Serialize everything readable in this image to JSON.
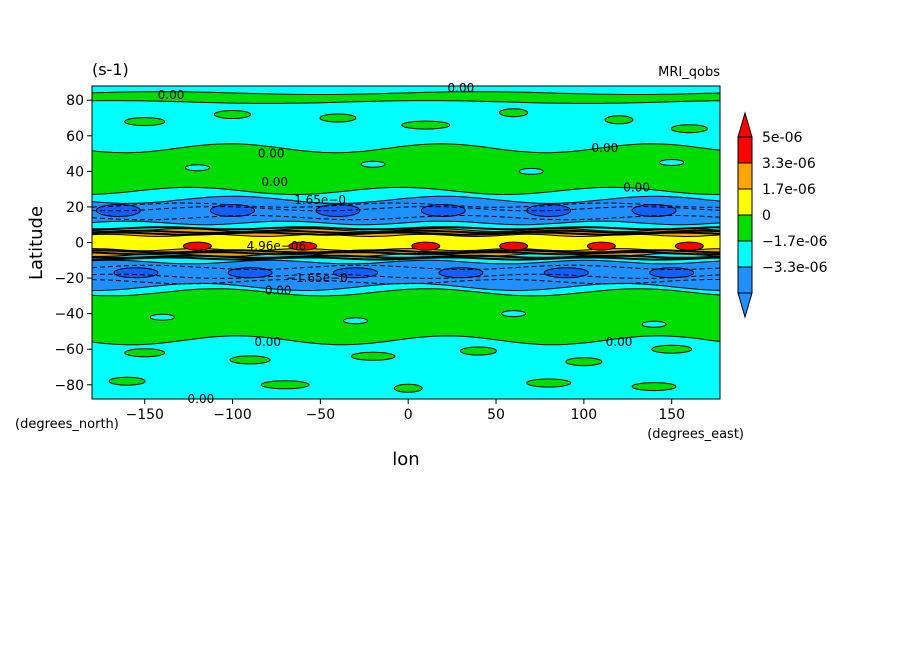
{
  "chart_data": {
    "type": "heatmap",
    "units_label": "(s-1)",
    "dataset_label": "MRI_qobs",
    "xlabel": "lon",
    "ylabel": "Latitude",
    "x_units": "(degrees_east)",
    "y_units": "(degrees_north)",
    "xlim": [
      -180,
      177.5
    ],
    "ylim": [
      -88,
      88
    ],
    "x_ticks": [
      -150,
      -100,
      -50,
      0,
      50,
      100,
      150
    ],
    "y_ticks": [
      -80,
      -60,
      -40,
      -20,
      0,
      20,
      40,
      60,
      80
    ],
    "color_levels": [
      -5e-06,
      -3.3e-06,
      -1.7e-06,
      0,
      1.7e-06,
      3.3e-06,
      5e-06
    ],
    "colorbar_labels": [
      "5e-06",
      "3.3e-06",
      "1.7e-06",
      "0",
      "−1.7e-06",
      "−3.3e-06"
    ],
    "colors": {
      "dark_blue": "#0000cc",
      "blue": "#1e90ff",
      "cyan": "#00ffff",
      "green": "#00dd00",
      "yellow": "#ffff00",
      "orange": "#ffa500",
      "red": "#ff0000"
    },
    "contour_labels": [
      {
        "text": "0.00",
        "lon": -135,
        "lat": 83
      },
      {
        "text": "0.00",
        "lon": 30,
        "lat": 87
      },
      {
        "text": "0.00",
        "lon": -78,
        "lat": 50
      },
      {
        "text": "0.00",
        "lon": 112,
        "lat": 53
      },
      {
        "text": "0.00",
        "lon": -76,
        "lat": 34
      },
      {
        "text": "0.00",
        "lon": 130,
        "lat": 31
      },
      {
        "text": "−1.65e−0",
        "lon": -53,
        "lat": 24
      },
      {
        "text": "4.96e−06",
        "lon": -75,
        "lat": -2
      },
      {
        "text": "−1.65e−0",
        "lon": -52,
        "lat": -20
      },
      {
        "text": "0.00",
        "lon": -74,
        "lat": -27
      },
      {
        "text": "0.00",
        "lon": -80,
        "lat": -56
      },
      {
        "text": "0.00",
        "lon": 120,
        "lat": -56
      },
      {
        "text": "0.00",
        "lon": -118,
        "lat": -88
      }
    ]
  }
}
